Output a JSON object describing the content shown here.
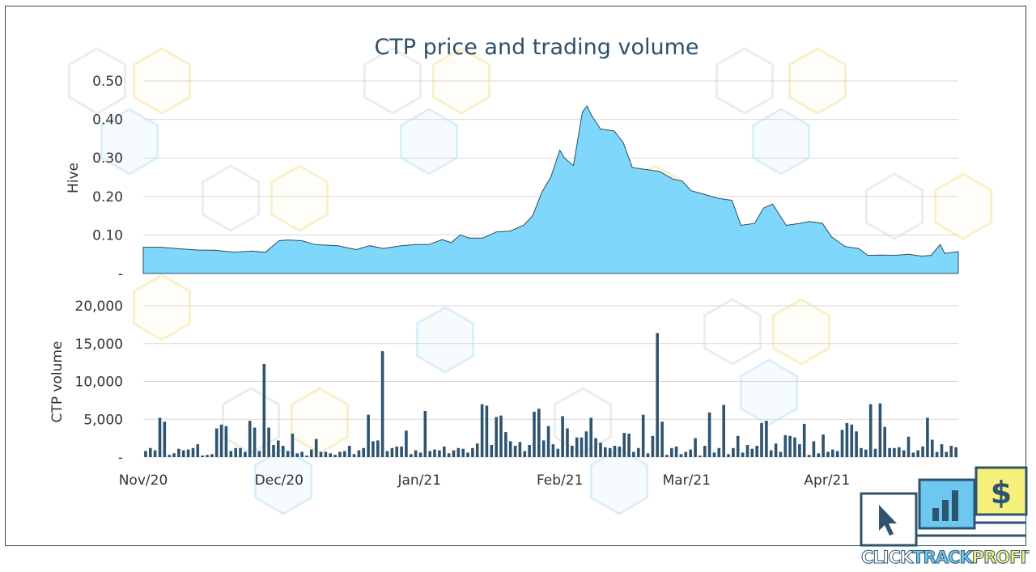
{
  "colors": {
    "price_fill": "#7fd8fb",
    "price_line": "#2b4a5e",
    "bar": "#2f5470",
    "title": "#2f5068"
  },
  "chart_data": [
    {
      "type": "area",
      "title": "CTP price and trading volume",
      "ylabel": "Hive",
      "ylim": [
        0,
        0.5
      ],
      "yticks": [
        "-",
        "0.10",
        "0.20",
        "0.30",
        "0.40",
        "0.50"
      ],
      "x_start": "2020-11-01",
      "x_end": "2021-04-30",
      "points": [
        [
          "2020-11-01",
          0.068
        ],
        [
          "2020-11-05",
          0.068
        ],
        [
          "2020-11-09",
          0.064
        ],
        [
          "2020-11-13",
          0.061
        ],
        [
          "2020-11-17",
          0.06
        ],
        [
          "2020-11-21",
          0.055
        ],
        [
          "2020-11-25",
          0.058
        ],
        [
          "2020-11-28",
          0.055
        ],
        [
          "2020-12-01",
          0.085
        ],
        [
          "2020-12-03",
          0.087
        ],
        [
          "2020-12-06",
          0.085
        ],
        [
          "2020-12-09",
          0.075
        ],
        [
          "2020-12-14",
          0.072
        ],
        [
          "2020-12-18",
          0.062
        ],
        [
          "2020-12-21",
          0.072
        ],
        [
          "2020-12-24",
          0.065
        ],
        [
          "2020-12-28",
          0.072
        ],
        [
          "2020-12-31",
          0.075
        ],
        [
          "2021-01-03",
          0.075
        ],
        [
          "2021-01-06",
          0.088
        ],
        [
          "2021-01-08",
          0.08
        ],
        [
          "2021-01-10",
          0.1
        ],
        [
          "2021-01-12",
          0.092
        ],
        [
          "2021-01-15",
          0.092
        ],
        [
          "2021-01-18",
          0.108
        ],
        [
          "2021-01-21",
          0.11
        ],
        [
          "2021-01-24",
          0.125
        ],
        [
          "2021-01-26",
          0.15
        ],
        [
          "2021-01-28",
          0.21
        ],
        [
          "2021-01-30",
          0.25
        ],
        [
          "2021-02-01",
          0.32
        ],
        [
          "2021-02-02",
          0.3
        ],
        [
          "2021-02-04",
          0.28
        ],
        [
          "2021-02-06",
          0.42
        ],
        [
          "2021-02-07",
          0.435
        ],
        [
          "2021-02-08",
          0.41
        ],
        [
          "2021-02-10",
          0.375
        ],
        [
          "2021-02-13",
          0.37
        ],
        [
          "2021-02-15",
          0.34
        ],
        [
          "2021-02-17",
          0.275
        ],
        [
          "2021-02-20",
          0.27
        ],
        [
          "2021-02-23",
          0.265
        ],
        [
          "2021-02-26",
          0.245
        ],
        [
          "2021-02-28",
          0.24
        ],
        [
          "2021-03-02",
          0.215
        ],
        [
          "2021-03-05",
          0.205
        ],
        [
          "2021-03-08",
          0.195
        ],
        [
          "2021-03-11",
          0.19
        ],
        [
          "2021-03-13",
          0.125
        ],
        [
          "2021-03-16",
          0.13
        ],
        [
          "2021-03-18",
          0.17
        ],
        [
          "2021-03-20",
          0.18
        ],
        [
          "2021-03-23",
          0.125
        ],
        [
          "2021-03-26",
          0.13
        ],
        [
          "2021-03-28",
          0.135
        ],
        [
          "2021-03-31",
          0.13
        ],
        [
          "2021-04-02",
          0.095
        ],
        [
          "2021-04-05",
          0.07
        ],
        [
          "2021-04-08",
          0.065
        ],
        [
          "2021-04-10",
          0.047
        ],
        [
          "2021-04-13",
          0.048
        ],
        [
          "2021-04-16",
          0.047
        ],
        [
          "2021-04-19",
          0.05
        ],
        [
          "2021-04-22",
          0.045
        ],
        [
          "2021-04-24",
          0.047
        ],
        [
          "2021-04-26",
          0.075
        ],
        [
          "2021-04-27",
          0.052
        ],
        [
          "2021-04-29",
          0.055
        ],
        [
          "2021-04-30",
          0.057
        ]
      ]
    },
    {
      "type": "bar",
      "ylabel": "CTP volume",
      "ylim": [
        0,
        20000
      ],
      "yticks": [
        "-",
        "5,000",
        "10,000",
        "15,000",
        "20,000"
      ],
      "xticks": [
        "Nov/20",
        "Dec/20",
        "Jan/21",
        "Feb/21",
        "Mar/21",
        "Apr/21"
      ],
      "x_start": "2020-11-01",
      "values": [
        800,
        1200,
        900,
        5200,
        4700,
        300,
        500,
        1100,
        900,
        1000,
        1200,
        1700,
        200,
        300,
        400,
        3800,
        4300,
        4100,
        800,
        1200,
        1200,
        700,
        4800,
        3900,
        800,
        12300,
        3900,
        1600,
        2200,
        1500,
        800,
        3100,
        500,
        700,
        200,
        1000,
        2400,
        700,
        700,
        500,
        300,
        700,
        800,
        1500,
        400,
        900,
        1200,
        5600,
        2100,
        2200,
        14000,
        800,
        1200,
        1400,
        1400,
        3500,
        400,
        900,
        600,
        6100,
        800,
        1000,
        900,
        1400,
        500,
        900,
        1200,
        1100,
        600,
        1200,
        1800,
        7000,
        6800,
        1600,
        5300,
        5500,
        3300,
        2100,
        1500,
        2000,
        800,
        1600,
        6000,
        6400,
        2200,
        4100,
        1700,
        1100,
        5400,
        3800,
        1500,
        2600,
        2600,
        3400,
        5200,
        2500,
        1900,
        1300,
        1200,
        1500,
        1400,
        3200,
        3100,
        700,
        1200,
        5600,
        500,
        2800,
        16400,
        4700,
        300,
        1200,
        1400,
        400,
        700,
        1000,
        2500,
        200,
        1500,
        5900,
        600,
        1200,
        6900,
        400,
        1200,
        2800,
        600,
        1600,
        1100,
        1500,
        4500,
        4800,
        900,
        1800,
        700,
        2900,
        2800,
        2600,
        1700,
        4400,
        300,
        2100,
        500,
        3000,
        700,
        1000,
        800,
        3600,
        4500,
        4300,
        3400,
        1200,
        1000,
        7000,
        1100,
        7100,
        4000,
        1200,
        1200,
        1300,
        900,
        2700,
        600,
        900,
        1400,
        5200,
        2300,
        700,
        1700,
        700,
        1500,
        1300
      ]
    }
  ],
  "logo": {
    "word1": "CLICK",
    "word2": "TRACK",
    "word3": "PROFIT",
    "dollar": "$"
  }
}
